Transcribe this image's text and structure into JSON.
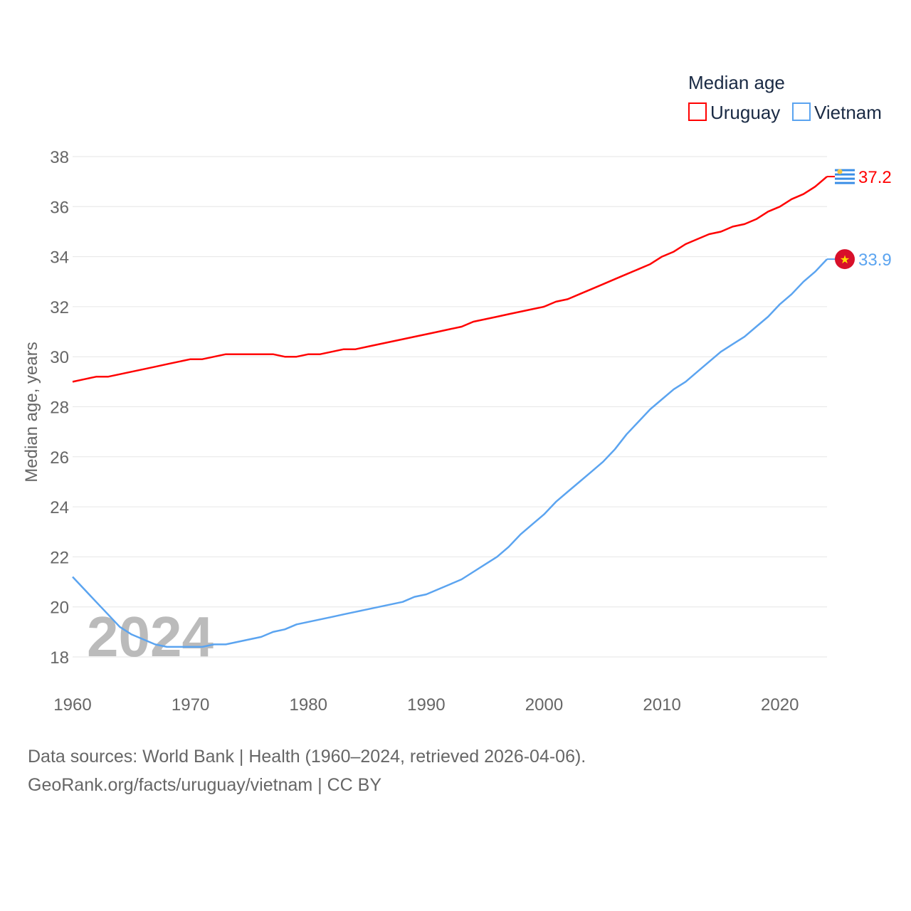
{
  "chart_data": {
    "type": "line",
    "legend_title": "Median age",
    "legend_position": "top-right",
    "ylabel": "Median age, years",
    "xlabel": "",
    "ylim": [
      17,
      38.5
    ],
    "xlim": [
      1960,
      2024
    ],
    "y_ticks": [
      18,
      20,
      22,
      24,
      26,
      28,
      30,
      32,
      34,
      36,
      38
    ],
    "x_ticks": [
      1960,
      1970,
      1980,
      1990,
      2000,
      2010,
      2020
    ],
    "grid": true,
    "watermark_year": "2024",
    "x_start": 1960,
    "series": [
      {
        "name": "Uruguay",
        "color": "#ff0000",
        "end_label": "37.2",
        "flag": "uruguay-flag",
        "values": [
          29.0,
          29.1,
          29.2,
          29.2,
          29.3,
          29.4,
          29.5,
          29.6,
          29.7,
          29.8,
          29.9,
          29.9,
          30.0,
          30.1,
          30.1,
          30.1,
          30.1,
          30.1,
          30.0,
          30.0,
          30.1,
          30.1,
          30.2,
          30.3,
          30.3,
          30.4,
          30.5,
          30.6,
          30.7,
          30.8,
          30.9,
          31.0,
          31.1,
          31.2,
          31.4,
          31.5,
          31.6,
          31.7,
          31.8,
          31.9,
          32.0,
          32.2,
          32.3,
          32.5,
          32.7,
          32.9,
          33.1,
          33.3,
          33.5,
          33.7,
          34.0,
          34.2,
          34.5,
          34.7,
          34.9,
          35.0,
          35.2,
          35.3,
          35.5,
          35.8,
          36.0,
          36.3,
          36.5,
          36.8,
          37.2
        ]
      },
      {
        "name": "Vietnam",
        "color": "#5ba4f0",
        "end_label": "33.9",
        "flag": "vietnam-flag",
        "values": [
          21.2,
          20.7,
          20.2,
          19.7,
          19.2,
          18.9,
          18.7,
          18.5,
          18.4,
          18.4,
          18.4,
          18.4,
          18.5,
          18.5,
          18.6,
          18.7,
          18.8,
          19.0,
          19.1,
          19.3,
          19.4,
          19.5,
          19.6,
          19.7,
          19.8,
          19.9,
          20.0,
          20.1,
          20.2,
          20.4,
          20.5,
          20.7,
          20.9,
          21.1,
          21.4,
          21.7,
          22.0,
          22.4,
          22.9,
          23.3,
          23.7,
          24.2,
          24.6,
          25.0,
          25.4,
          25.8,
          26.3,
          26.9,
          27.4,
          27.9,
          28.3,
          28.7,
          29.0,
          29.4,
          29.8,
          30.2,
          30.5,
          30.8,
          31.2,
          31.6,
          32.1,
          32.5,
          33.0,
          33.4,
          33.9
        ]
      }
    ]
  },
  "footer": {
    "line1": "Data sources: World Bank | Health (1960–2024, retrieved 2026-04-06).",
    "line2": "GeoRank.org/facts/uruguay/vietnam | CC BY"
  }
}
